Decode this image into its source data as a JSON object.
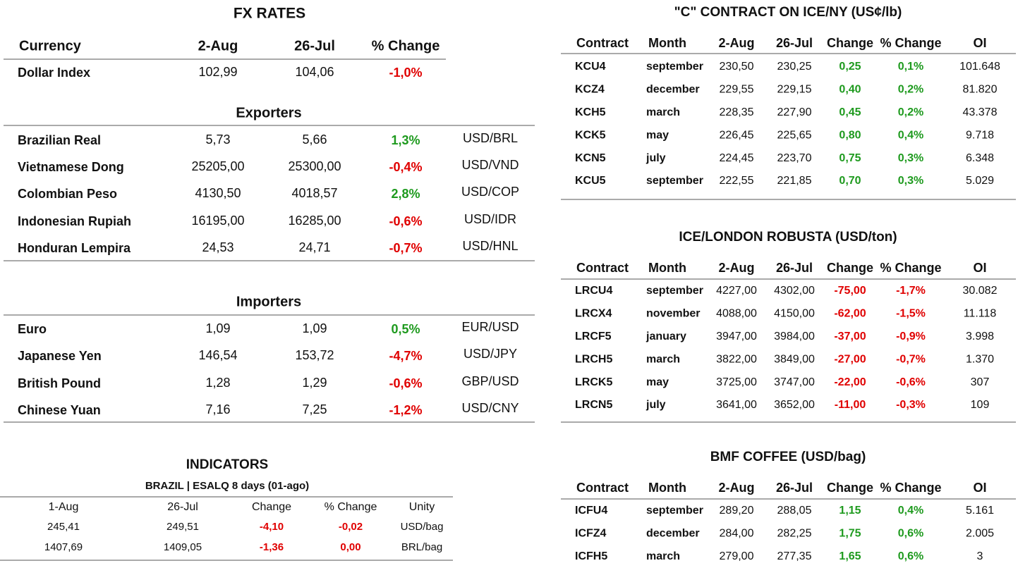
{
  "fx_rates": {
    "title": "FX RATES",
    "header": [
      "Currency",
      "2-Aug",
      "26-Jul",
      "% Change"
    ],
    "dollar_index": [
      "Dollar Index",
      "102,99",
      "104,06",
      "-1,0%"
    ],
    "exporters": {
      "title": "Exporters",
      "rows": [
        [
          "Brazilian Real",
          "5,73",
          "5,66",
          "1,3%",
          "USD/BRL"
        ],
        [
          "Vietnamese Dong",
          "25205,00",
          "25300,00",
          "-0,4%",
          "USD/VND"
        ],
        [
          "Colombian Peso",
          "4130,50",
          "4018,57",
          "2,8%",
          "USD/COP"
        ],
        [
          "Indonesian Rupiah",
          "16195,00",
          "16285,00",
          "-0,6%",
          "USD/IDR"
        ],
        [
          "Honduran Lempira",
          "24,53",
          "24,71",
          "-0,7%",
          "USD/HNL"
        ]
      ]
    },
    "importers": {
      "title": "Importers",
      "rows": [
        [
          "Euro",
          "1,09",
          "1,09",
          "0,5%",
          "EUR/USD"
        ],
        [
          "Japanese Yen",
          "146,54",
          "153,72",
          "-4,7%",
          "USD/JPY"
        ],
        [
          "British Pound",
          "1,28",
          "1,29",
          "-0,6%",
          "GBP/USD"
        ],
        [
          "Chinese Yuan",
          "7,16",
          "7,25",
          "-1,2%",
          "USD/CNY"
        ]
      ]
    }
  },
  "indicators": {
    "title": "INDICATORS",
    "subtitle": "BRAZIL | ESALQ 8 days (01-ago)",
    "header": [
      "1-Aug",
      "26-Jul",
      "Change",
      "% Change",
      "Unity"
    ],
    "rows": [
      [
        "245,41",
        "249,51",
        "-4,10",
        "-0,02",
        "USD/bag"
      ],
      [
        "1407,69",
        "1409,05",
        "-1,36",
        "0,00",
        "BRL/bag"
      ]
    ]
  },
  "futures": [
    {
      "title": "\"C\" CONTRACT ON ICE/NY (US¢/lb)",
      "header": [
        "Contract",
        "Month",
        "2-Aug",
        "26-Jul",
        "Change",
        "% Change",
        "OI"
      ],
      "rows": [
        [
          "KCU4",
          "september",
          "230,50",
          "230,25",
          "0,25",
          "0,1%",
          "101.648"
        ],
        [
          "KCZ4",
          "december",
          "229,55",
          "229,15",
          "0,40",
          "0,2%",
          "81.820"
        ],
        [
          "KCH5",
          "march",
          "228,35",
          "227,90",
          "0,45",
          "0,2%",
          "43.378"
        ],
        [
          "KCK5",
          "may",
          "226,45",
          "225,65",
          "0,80",
          "0,4%",
          "9.718"
        ],
        [
          "KCN5",
          "july",
          "224,45",
          "223,70",
          "0,75",
          "0,3%",
          "6.348"
        ],
        [
          "KCU5",
          "september",
          "222,55",
          "221,85",
          "0,70",
          "0,3%",
          "5.029"
        ]
      ]
    },
    {
      "title": "ICE/LONDON ROBUSTA (USD/ton)",
      "header": [
        "Contract",
        "Month",
        "2-Aug",
        "26-Jul",
        "Change",
        "% Change",
        "OI"
      ],
      "rows": [
        [
          "LRCU4",
          "september",
          "4227,00",
          "4302,00",
          "-75,00",
          "-1,7%",
          "30.082"
        ],
        [
          "LRCX4",
          "november",
          "4088,00",
          "4150,00",
          "-62,00",
          "-1,5%",
          "11.118"
        ],
        [
          "LRCF5",
          "january",
          "3947,00",
          "3984,00",
          "-37,00",
          "-0,9%",
          "3.998"
        ],
        [
          "LRCH5",
          "march",
          "3822,00",
          "3849,00",
          "-27,00",
          "-0,7%",
          "1.370"
        ],
        [
          "LRCK5",
          "may",
          "3725,00",
          "3747,00",
          "-22,00",
          "-0,6%",
          "307"
        ],
        [
          "LRCN5",
          "july",
          "3641,00",
          "3652,00",
          "-11,00",
          "-0,3%",
          "109"
        ]
      ]
    },
    {
      "title": "BMF COFFEE (USD/bag)",
      "header": [
        "Contract",
        "Month",
        "2-Aug",
        "26-Jul",
        "Change",
        "% Change",
        "OI"
      ],
      "rows": [
        [
          "ICFU4",
          "september",
          "289,20",
          "288,05",
          "1,15",
          "0,4%",
          "5.161"
        ],
        [
          "ICFZ4",
          "december",
          "284,00",
          "282,25",
          "1,75",
          "0,6%",
          "2.005"
        ],
        [
          "ICFH5",
          "march",
          "279,00",
          "277,35",
          "1,65",
          "0,6%",
          "3"
        ]
      ]
    }
  ]
}
